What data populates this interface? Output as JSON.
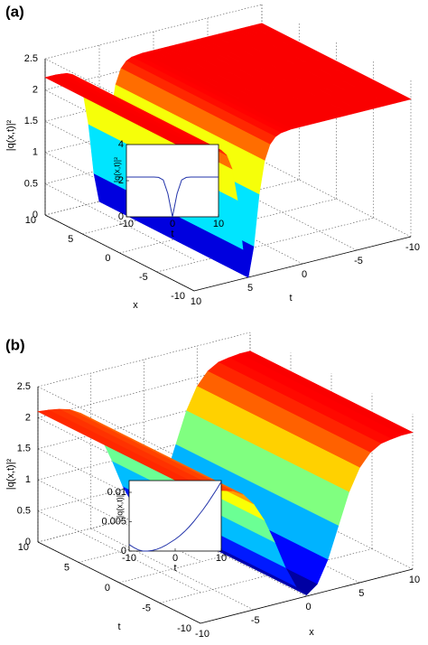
{
  "chart_data": [
    {
      "type": "surface",
      "panel_label": "(a)",
      "zlabel": "|q(x,t)|²",
      "xlabel": "x",
      "ylabel": "t",
      "xlim": [
        -10,
        10
      ],
      "xticks": [
        -10,
        -5,
        0,
        5,
        10
      ],
      "ylim": [
        -10,
        10
      ],
      "yticks": [
        -10,
        -5,
        0,
        5,
        10
      ],
      "zlim": [
        0,
        2.5
      ],
      "zticks": [
        0,
        0.5,
        1,
        1.5,
        2,
        2.5
      ],
      "colormap": "jet",
      "profile_along": "y",
      "samples": [
        -10,
        -9.5,
        -9,
        -8.5,
        -8,
        -7.5,
        -7,
        -6.5,
        -6,
        -5.5,
        -5,
        -4.5,
        -4,
        -3.5,
        -3,
        -2.5,
        -2,
        -1.5,
        -1,
        -0.5,
        0,
        0.5,
        1,
        1.5,
        2,
        2.5,
        3,
        3.5,
        4,
        4.5,
        5,
        5.5,
        6,
        6.5,
        7,
        7.5,
        8,
        8.5,
        9,
        9.5,
        10
      ],
      "values": [
        2.2,
        2.2,
        2.2,
        2.2,
        2.2,
        2.2,
        2.2,
        2.2,
        2.2,
        2.2,
        2.2,
        2.2,
        2.2,
        2.2,
        2.2,
        2.2,
        2.2,
        2.2,
        2.2,
        2.2,
        2.2,
        2.2,
        2.2,
        2.19,
        2.18,
        2.14,
        2.04,
        1.8,
        1.28,
        0.47,
        0,
        0.47,
        1.28,
        1.8,
        2.04,
        2.14,
        2.18,
        2.19,
        2.2,
        2.2,
        2.2
      ],
      "inset": {
        "type": "line",
        "xlabel": "t",
        "ylabel": "|q(x,t)|²",
        "color": "#2233aa",
        "x": [
          -10,
          -9,
          -8,
          -7,
          -6,
          -5,
          -4,
          -3,
          -2,
          -1,
          0,
          1,
          2,
          3,
          4,
          5,
          6,
          7,
          8,
          9,
          10
        ],
        "values": [
          2.2,
          2.2,
          2.2,
          2.2,
          2.2,
          2.2,
          2.2,
          2.18,
          2.04,
          1.28,
          0,
          1.28,
          2.04,
          2.18,
          2.2,
          2.2,
          2.2,
          2.2,
          2.2,
          2.2,
          2.2
        ],
        "xlim": [
          -10,
          10
        ],
        "xticks": [
          -10,
          0,
          10
        ],
        "ylim": [
          0,
          4
        ],
        "yticks": [
          0,
          2,
          4
        ]
      }
    },
    {
      "type": "surface",
      "panel_label": "(b)",
      "zlabel": "|q(x,t)|²",
      "xlabel": "x",
      "ylabel": "t",
      "xlim": [
        -10,
        10
      ],
      "xticks": [
        -10,
        -5,
        0,
        5,
        10
      ],
      "ylim": [
        -10,
        10
      ],
      "yticks": [
        -10,
        -5,
        0,
        5,
        10
      ],
      "zlim": [
        0,
        2.5
      ],
      "zticks": [
        0,
        0.5,
        1,
        1.5,
        2,
        2.5
      ],
      "colormap": "jet",
      "profile_along": "x",
      "samples": [
        -10,
        -9,
        -8,
        -7,
        -6,
        -5,
        -4,
        -3,
        -2,
        -1,
        0,
        1,
        2,
        3,
        4,
        5,
        6,
        7,
        8,
        9,
        10
      ],
      "values": [
        2.1,
        2.08,
        2.05,
        2.0,
        1.9,
        1.7,
        1.4,
        1.0,
        0.55,
        0.2,
        0.02,
        0.15,
        0.5,
        1.0,
        1.5,
        1.85,
        2.05,
        2.15,
        2.18,
        2.2,
        2.2
      ],
      "inset": {
        "type": "line",
        "xlabel": "t",
        "ylabel": "|q(x,t)|²",
        "color": "#2233aa",
        "x": [
          -10,
          -9,
          -8,
          -7,
          -6,
          -5,
          -4,
          -3,
          -2,
          -1,
          0,
          1,
          2,
          3,
          4,
          5,
          6,
          7,
          8,
          9,
          10
        ],
        "values": [
          0.0011,
          0.0006,
          0.0002,
          0,
          0,
          0.0001,
          0.0003,
          0.0006,
          0.001,
          0.0015,
          0.002,
          0.0026,
          0.0033,
          0.0041,
          0.005,
          0.006,
          0.007,
          0.0081,
          0.0093,
          0.0105,
          0.0118
        ],
        "xlim": [
          -10,
          10
        ],
        "xticks": [
          -10,
          0,
          10
        ],
        "ylim": [
          0,
          0.012
        ],
        "yticks": [
          0,
          0.005,
          0.01
        ]
      }
    }
  ]
}
